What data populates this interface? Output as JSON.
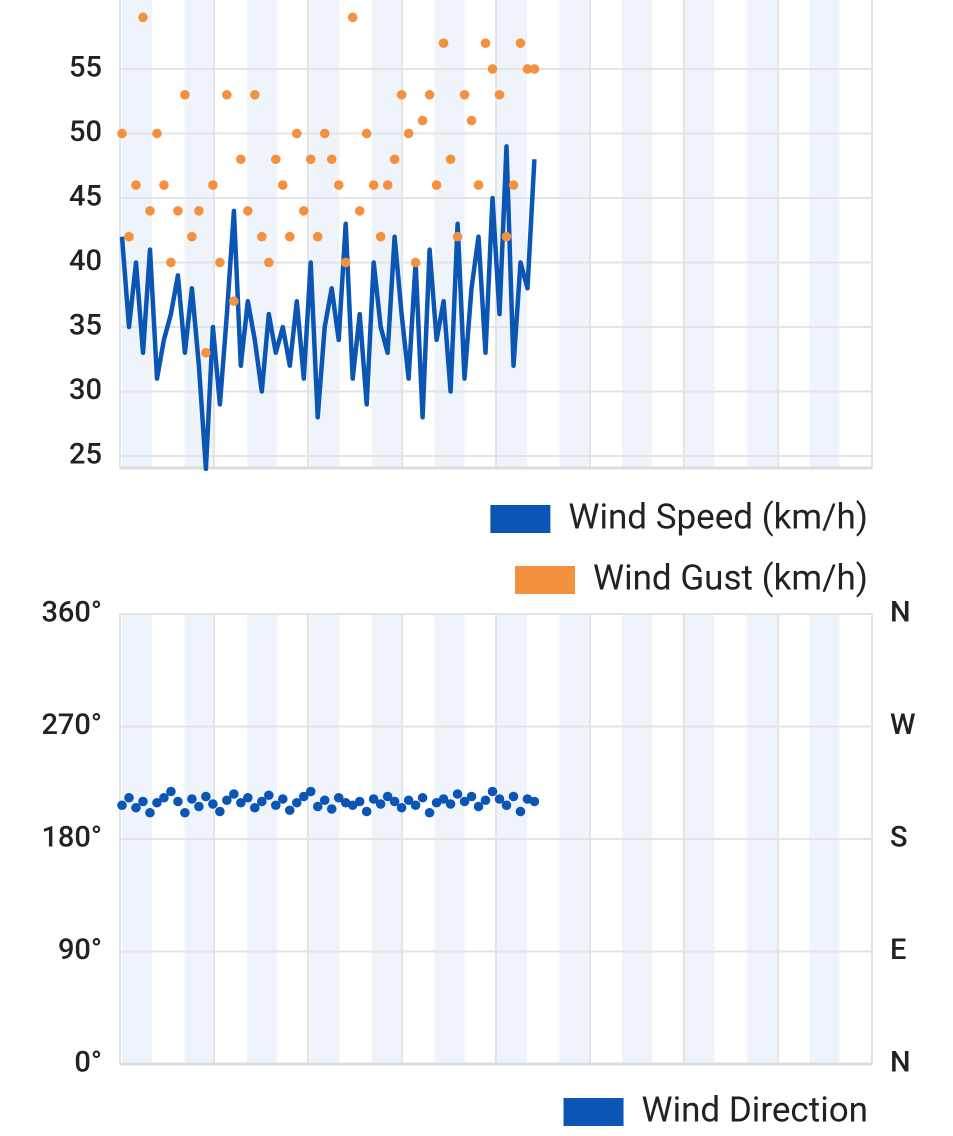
{
  "chart_data": [
    {
      "type": "line",
      "ylim": [
        24.07,
        58.95
      ],
      "yticks": [
        25,
        30,
        35,
        40,
        45,
        50,
        55
      ],
      "grid": true,
      "series": [
        {
          "name": "Wind Speed (km/h)",
          "type": "line",
          "color": "#0b55b4",
          "values": [
            42,
            35,
            40,
            33,
            41,
            31,
            34,
            36,
            39,
            33,
            38,
            32,
            24,
            35,
            29,
            36,
            44,
            32,
            37,
            34,
            30,
            36,
            33,
            35,
            32,
            37,
            31,
            40,
            28,
            35,
            38,
            34,
            43,
            31,
            36,
            29,
            40,
            35,
            33,
            42,
            36,
            31,
            40,
            28,
            41,
            34,
            37,
            30,
            43,
            31,
            38,
            42,
            33,
            45,
            36,
            49,
            32,
            40,
            38,
            48,
            null,
            null,
            null,
            null,
            null,
            null,
            null,
            null,
            null,
            null,
            null,
            null,
            null,
            null,
            null,
            null,
            null,
            null,
            null,
            null,
            null,
            null,
            null,
            null,
            null,
            null,
            null,
            null,
            null,
            null,
            null,
            null,
            null,
            null,
            null,
            null,
            null,
            null,
            null,
            null,
            null,
            null,
            null,
            null,
            null,
            null,
            null,
            null
          ]
        },
        {
          "name": "Wind Gust (km/h)",
          "type": "scatter",
          "color": "#f4913f",
          "values": [
            50,
            42,
            46,
            59,
            44,
            50,
            46,
            40,
            44,
            53,
            42,
            44,
            33,
            46,
            40,
            53,
            37,
            48,
            44,
            53,
            42,
            40,
            48,
            46,
            42,
            50,
            44,
            48,
            42,
            50,
            48,
            46,
            40,
            59,
            44,
            50,
            46,
            42,
            46,
            48,
            53,
            50,
            40,
            51,
            53,
            46,
            57,
            48,
            42,
            53,
            51,
            46,
            57,
            55,
            53,
            42,
            46,
            57,
            55,
            55,
            null,
            null,
            null,
            null,
            null,
            null,
            null,
            null,
            null,
            null,
            null,
            null,
            null,
            null,
            null,
            null,
            null,
            null,
            null,
            null,
            null,
            null,
            null,
            null,
            null,
            null,
            null,
            null,
            null,
            null,
            null,
            null,
            null,
            null,
            null,
            null,
            null,
            null,
            null,
            null,
            null,
            null,
            null,
            null,
            null,
            null,
            null,
            null
          ]
        }
      ]
    },
    {
      "type": "scatter",
      "ylim": [
        0,
        360
      ],
      "yticks": [
        {
          "value": 0,
          "label": "0°"
        },
        {
          "value": 90,
          "label": "90°"
        },
        {
          "value": 180,
          "label": "180°"
        },
        {
          "value": 270,
          "label": "270°"
        },
        {
          "value": 360,
          "label": "360°"
        }
      ],
      "y2lim": [
        0,
        360
      ],
      "y2ticks": [
        {
          "value": 0,
          "label": "N"
        },
        {
          "value": 90,
          "label": "E"
        },
        {
          "value": 180,
          "label": "S"
        },
        {
          "value": 270,
          "label": "W"
        },
        {
          "value": 360,
          "label": "N"
        }
      ],
      "grid": true,
      "series": [
        {
          "name": "Wind Direction",
          "type": "scatter",
          "color": "#0b55b4",
          "values": [
            207,
            213,
            205,
            210,
            201,
            209,
            213,
            218,
            210,
            201,
            212,
            206,
            214,
            208,
            202,
            211,
            216,
            209,
            213,
            205,
            210,
            215,
            207,
            212,
            203,
            209,
            214,
            218,
            206,
            211,
            204,
            213,
            209,
            207,
            210,
            202,
            212,
            208,
            214,
            210,
            205,
            211,
            207,
            213,
            201,
            209,
            212,
            208,
            216,
            210,
            214,
            206,
            211,
            218,
            212,
            207,
            214,
            202,
            212,
            210,
            null,
            null,
            null,
            null,
            null,
            null,
            null,
            null,
            null,
            null,
            null,
            null,
            null,
            null,
            null,
            null,
            null,
            null,
            null,
            null,
            null,
            null,
            null,
            null,
            null,
            null,
            null,
            null,
            null,
            null,
            null,
            null,
            null,
            null,
            null,
            null,
            null,
            null,
            null,
            null,
            null,
            null,
            null,
            null,
            null,
            null,
            null,
            null
          ]
        }
      ]
    }
  ]
}
